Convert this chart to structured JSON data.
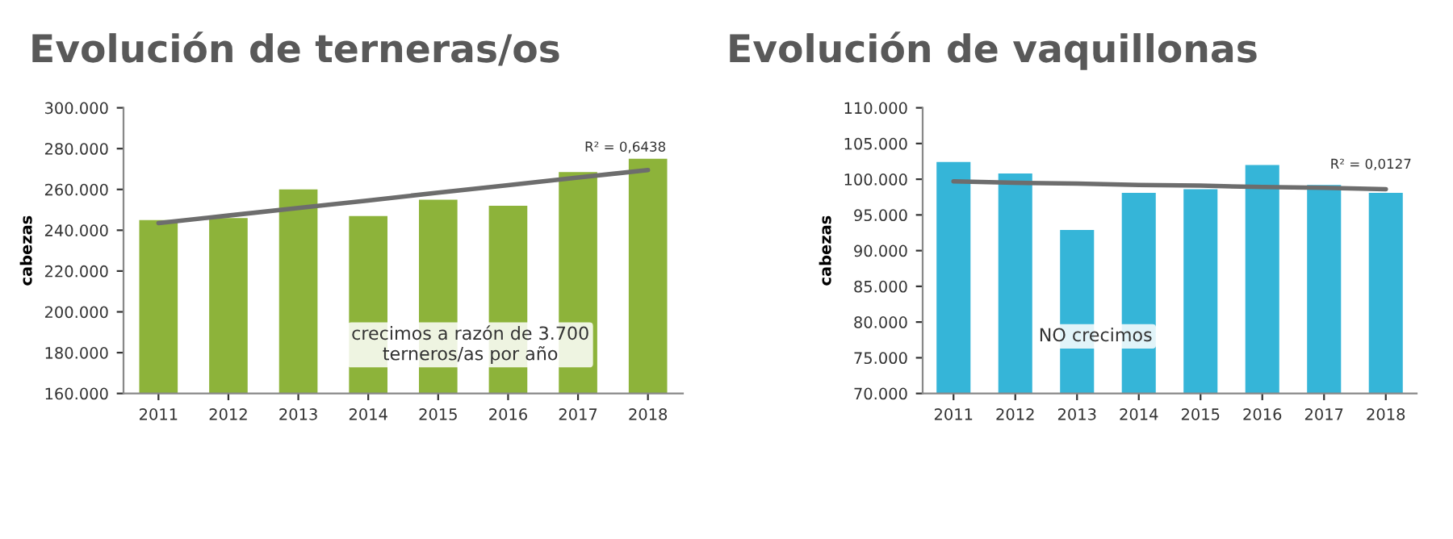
{
  "chart_data": [
    {
      "type": "bar",
      "title": "Evolución de terneras/os",
      "ylabel": "cabezas",
      "x": [
        2011,
        2012,
        2013,
        2014,
        2015,
        2016,
        2017,
        2018
      ],
      "series": [
        {
          "color": "#8db33a",
          "values": [
            245000,
            246000,
            260000,
            247000,
            255000,
            252000,
            268500,
            275000
          ]
        },
        {
          "type": "line",
          "color": "#6d6d6d",
          "values": [
            243500,
            247200,
            250900,
            254600,
            258400,
            262100,
            265800,
            269500
          ]
        }
      ],
      "xlim": [
        2010.5,
        2018.5
      ],
      "xticks": [
        2011,
        2012,
        2013,
        2014,
        2015,
        2016,
        2017,
        2018
      ],
      "ylim": [
        160000,
        300000
      ],
      "yticks": [
        {
          "value": 160000,
          "label": "160.000"
        },
        {
          "value": 180000,
          "label": "180.000"
        },
        {
          "value": 200000,
          "label": "200.000"
        },
        {
          "value": 220000,
          "label": "220.000"
        },
        {
          "value": 240000,
          "label": "240.000"
        },
        {
          "value": 260000,
          "label": "260.000"
        },
        {
          "value": 280000,
          "label": "280.000"
        },
        {
          "value": 300000,
          "label": "300.000"
        }
      ],
      "annotations": [
        "R² = 0,6438",
        "crecimos a razón de 3.700\nterneros/as por año"
      ],
      "grid": false
    },
    {
      "type": "bar",
      "title": "Evolución de vaquillonas",
      "ylabel": "cabezas",
      "x": [
        2011,
        2012,
        2013,
        2014,
        2015,
        2016,
        2017,
        2018
      ],
      "series": [
        {
          "color": "#35b5d8",
          "values": [
            102400,
            100800,
            92900,
            98100,
            98600,
            102000,
            99200,
            98100
          ]
        },
        {
          "type": "line",
          "color": "#6d6d6d",
          "values": [
            99700,
            99500,
            99400,
            99200,
            99100,
            98900,
            98800,
            98600
          ]
        }
      ],
      "xlim": [
        2010.5,
        2018.5
      ],
      "xticks": [
        2011,
        2012,
        2013,
        2014,
        2015,
        2016,
        2017,
        2018
      ],
      "ylim": [
        70000,
        110000
      ],
      "yticks": [
        {
          "value": 70000,
          "label": "70.000"
        },
        {
          "value": 75000,
          "label": "75.000"
        },
        {
          "value": 80000,
          "label": "80.000"
        },
        {
          "value": 85000,
          "label": "85.000"
        },
        {
          "value": 90000,
          "label": "90.000"
        },
        {
          "value": 95000,
          "label": "95.000"
        },
        {
          "value": 100000,
          "label": "100.000"
        },
        {
          "value": 105000,
          "label": "105.000"
        },
        {
          "value": 110000,
          "label": "110.000"
        }
      ],
      "annotations": [
        "R² = 0,0127",
        "NO crecimos"
      ],
      "grid": false
    }
  ]
}
